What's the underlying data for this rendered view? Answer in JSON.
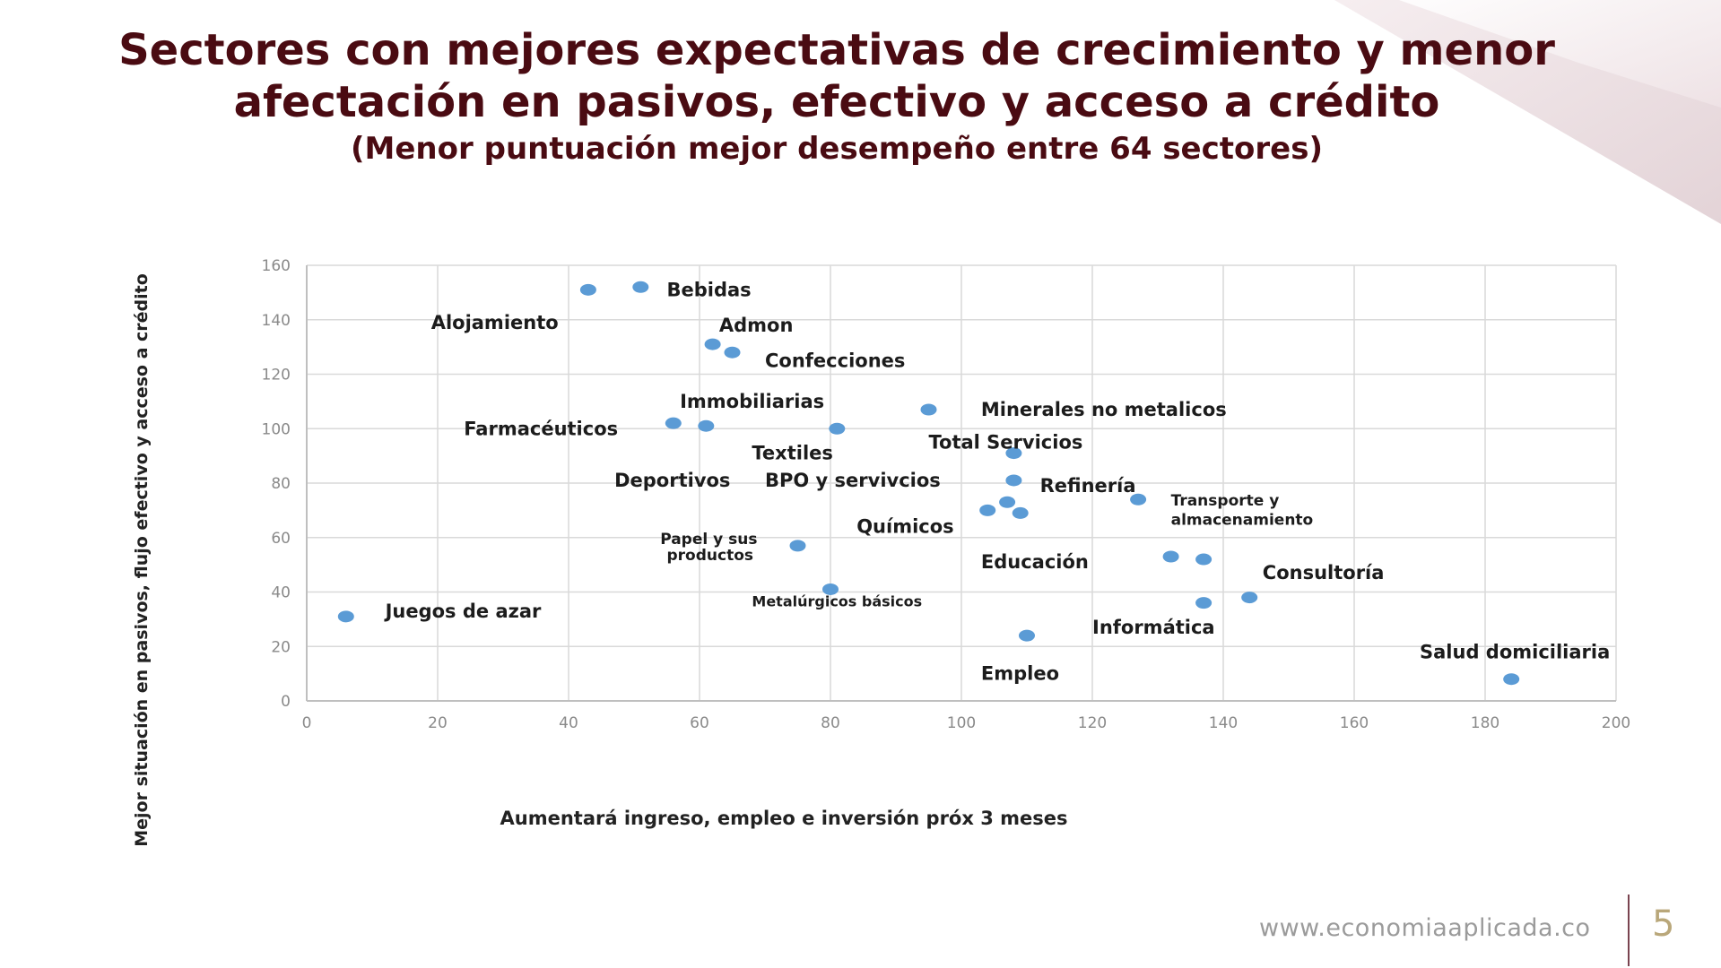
{
  "slide": {
    "title_line1": "Sectores con mejores expectativas de crecimiento y menor",
    "title_line2": "afectación en pasivos, efectivo y acceso a crédito",
    "subtitle": "(Menor puntuación mejor desempeño entre 64 sectores)",
    "footer_url": "www.economiaaplicada.co",
    "page_number": "5"
  },
  "colors": {
    "title": "#4a0b12",
    "point": "#5b9bd5",
    "grid": "#d9d9d9",
    "accent_gold": "#b9a77a"
  },
  "chart_data": {
    "type": "scatter",
    "xlabel": "Aumentará ingreso, empleo e inversión próx 3 meses",
    "ylabel": "Mejor situación en pasivos, flujo efectivo y acceso a crédito",
    "xlim": [
      0,
      200
    ],
    "ylim": [
      0,
      160
    ],
    "xticks": [
      0,
      20,
      40,
      60,
      80,
      100,
      120,
      140,
      160,
      180,
      200
    ],
    "yticks": [
      0,
      20,
      40,
      60,
      80,
      100,
      120,
      140,
      160
    ],
    "grid": true,
    "points": [
      {
        "x": 6,
        "y": 31
      },
      {
        "x": 43,
        "y": 151
      },
      {
        "x": 51,
        "y": 152
      },
      {
        "x": 62,
        "y": 131
      },
      {
        "x": 65,
        "y": 128
      },
      {
        "x": 56,
        "y": 102
      },
      {
        "x": 61,
        "y": 101
      },
      {
        "x": 81,
        "y": 100
      },
      {
        "x": 95,
        "y": 107
      },
      {
        "x": 108,
        "y": 91
      },
      {
        "x": 108,
        "y": 81
      },
      {
        "x": 107,
        "y": 73
      },
      {
        "x": 104,
        "y": 70
      },
      {
        "x": 109,
        "y": 69
      },
      {
        "x": 127,
        "y": 74
      },
      {
        "x": 75,
        "y": 57
      },
      {
        "x": 80,
        "y": 41
      },
      {
        "x": 110,
        "y": 24
      },
      {
        "x": 132,
        "y": 53
      },
      {
        "x": 137,
        "y": 52
      },
      {
        "x": 137,
        "y": 36
      },
      {
        "x": 144,
        "y": 38
      },
      {
        "x": 184,
        "y": 8
      }
    ],
    "labels": [
      {
        "text": "Bebidas",
        "x": 55,
        "y": 151
      },
      {
        "text": "Alojamiento",
        "x": 19,
        "y": 139
      },
      {
        "text": "Admon",
        "x": 63,
        "y": 138
      },
      {
        "text": "Confecciones",
        "x": 70,
        "y": 125
      },
      {
        "text": "Immobiliarias",
        "x": 57,
        "y": 110
      },
      {
        "text": "Farmacéuticos",
        "x": 24,
        "y": 100
      },
      {
        "text": "Minerales no metalicos",
        "x": 103,
        "y": 107
      },
      {
        "text": "Total Servicios",
        "x": 95,
        "y": 95
      },
      {
        "text": "Textiles",
        "x": 68,
        "y": 91
      },
      {
        "text": "Deportivos",
        "x": 47,
        "y": 81
      },
      {
        "text": "BPO y servivcios",
        "x": 70,
        "y": 81
      },
      {
        "text": "Refinería",
        "x": 112,
        "y": 79
      },
      {
        "text": "Transporte y",
        "x": 132,
        "y": 74
      },
      {
        "text": "almacenamiento",
        "x": 132,
        "y": 67
      },
      {
        "text": "Químicos",
        "x": 84,
        "y": 64
      },
      {
        "text": "Papel y sus",
        "x": 54,
        "y": 60
      },
      {
        "text": "productos",
        "x": 55,
        "y": 54
      },
      {
        "text": "Educación",
        "x": 103,
        "y": 51
      },
      {
        "text": "Consultoría",
        "x": 146,
        "y": 47
      },
      {
        "text": "Juegos de azar",
        "x": 12,
        "y": 33
      },
      {
        "text": "Metalúrgicos básicos",
        "x": 68,
        "y": 37
      },
      {
        "text": "Informática",
        "x": 120,
        "y": 27
      },
      {
        "text": "Salud domiciliaria",
        "x": 170,
        "y": 18
      },
      {
        "text": "Empleo",
        "x": 103,
        "y": 10
      }
    ]
  }
}
